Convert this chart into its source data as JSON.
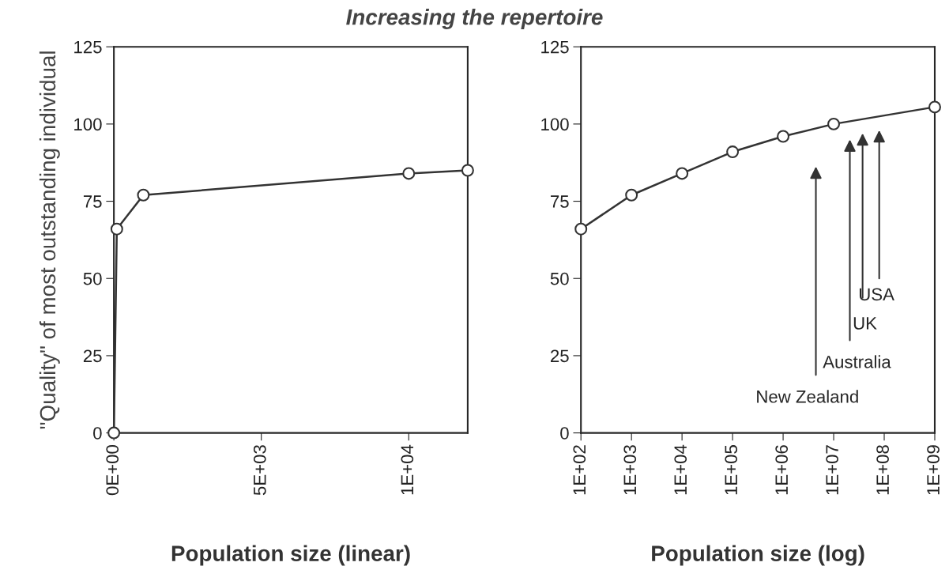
{
  "chart_data": [
    {
      "type": "line",
      "title": "Increasing the repertoire",
      "xlabel": "Population size (linear)",
      "ylabel": "\"Quality\" of most outstanding individual",
      "marker": "circle",
      "grid": false,
      "legend": false,
      "series": [
        {
          "color": "#333333",
          "x": [
            0,
            100,
            1000,
            10000,
            12000
          ],
          "values": [
            0,
            66,
            77,
            84,
            85
          ]
        }
      ],
      "xlim": [
        0,
        12000
      ],
      "xticks": [
        {
          "value": 0,
          "label": "0E+00"
        },
        {
          "value": 5000,
          "label": "5E+03"
        },
        {
          "value": 10000,
          "label": "1E+04"
        }
      ],
      "ylim": [
        0,
        125
      ],
      "yticks": [
        0,
        25,
        50,
        75,
        100,
        125
      ]
    },
    {
      "type": "line",
      "xlabel": "Population size (log)",
      "marker": "circle",
      "grid": false,
      "legend": false,
      "log": "x",
      "series": [
        {
          "color": "#333333",
          "x": [
            100,
            1000,
            10000,
            100000,
            1000000,
            10000000,
            1000000000
          ],
          "values": [
            66,
            77,
            84,
            91,
            96,
            100,
            105.5
          ]
        }
      ],
      "xlim": [
        100,
        1000000000
      ],
      "xticks": [
        {
          "value": 100,
          "label": "1E+02"
        },
        {
          "value": 1000,
          "label": "1E+03"
        },
        {
          "value": 10000,
          "label": "1E+04"
        },
        {
          "value": 100000,
          "label": "1E+05"
        },
        {
          "value": 1000000,
          "label": "1E+06"
        },
        {
          "value": 10000000,
          "label": "1E+07"
        },
        {
          "value": 100000000,
          "label": "1E+08"
        },
        {
          "value": 1000000000,
          "label": "1E+09"
        }
      ],
      "ylim": [
        0,
        125
      ],
      "yticks": [
        0,
        25,
        50,
        75,
        100,
        125
      ],
      "annotations": [
        "New Zealand",
        "Australia",
        "UK",
        "USA"
      ]
    }
  ]
}
